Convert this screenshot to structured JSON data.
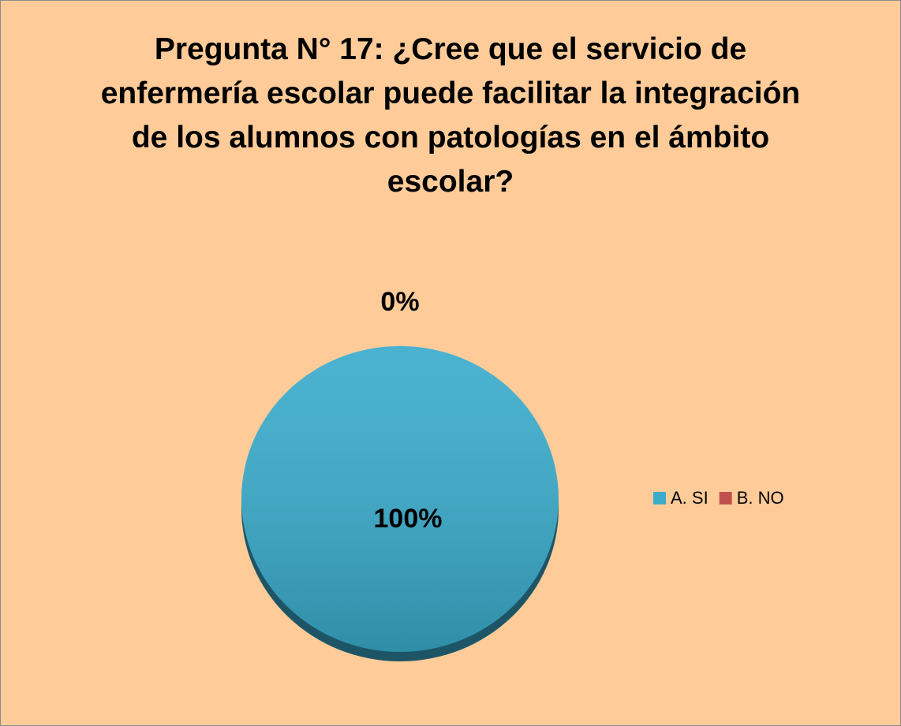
{
  "chart_data": {
    "type": "pie",
    "title": "Pregunta N° 17: ¿Cree que el servicio de enfermería escolar puede facilitar la integración de los alumnos con patologías en el ámbito escolar?",
    "categories": [
      "A. SI",
      "B. NO"
    ],
    "values": [
      100,
      0
    ],
    "value_labels": [
      "100%",
      "0%"
    ],
    "colors": [
      "#3aaccc",
      "#c0504d"
    ],
    "legend": "right"
  }
}
